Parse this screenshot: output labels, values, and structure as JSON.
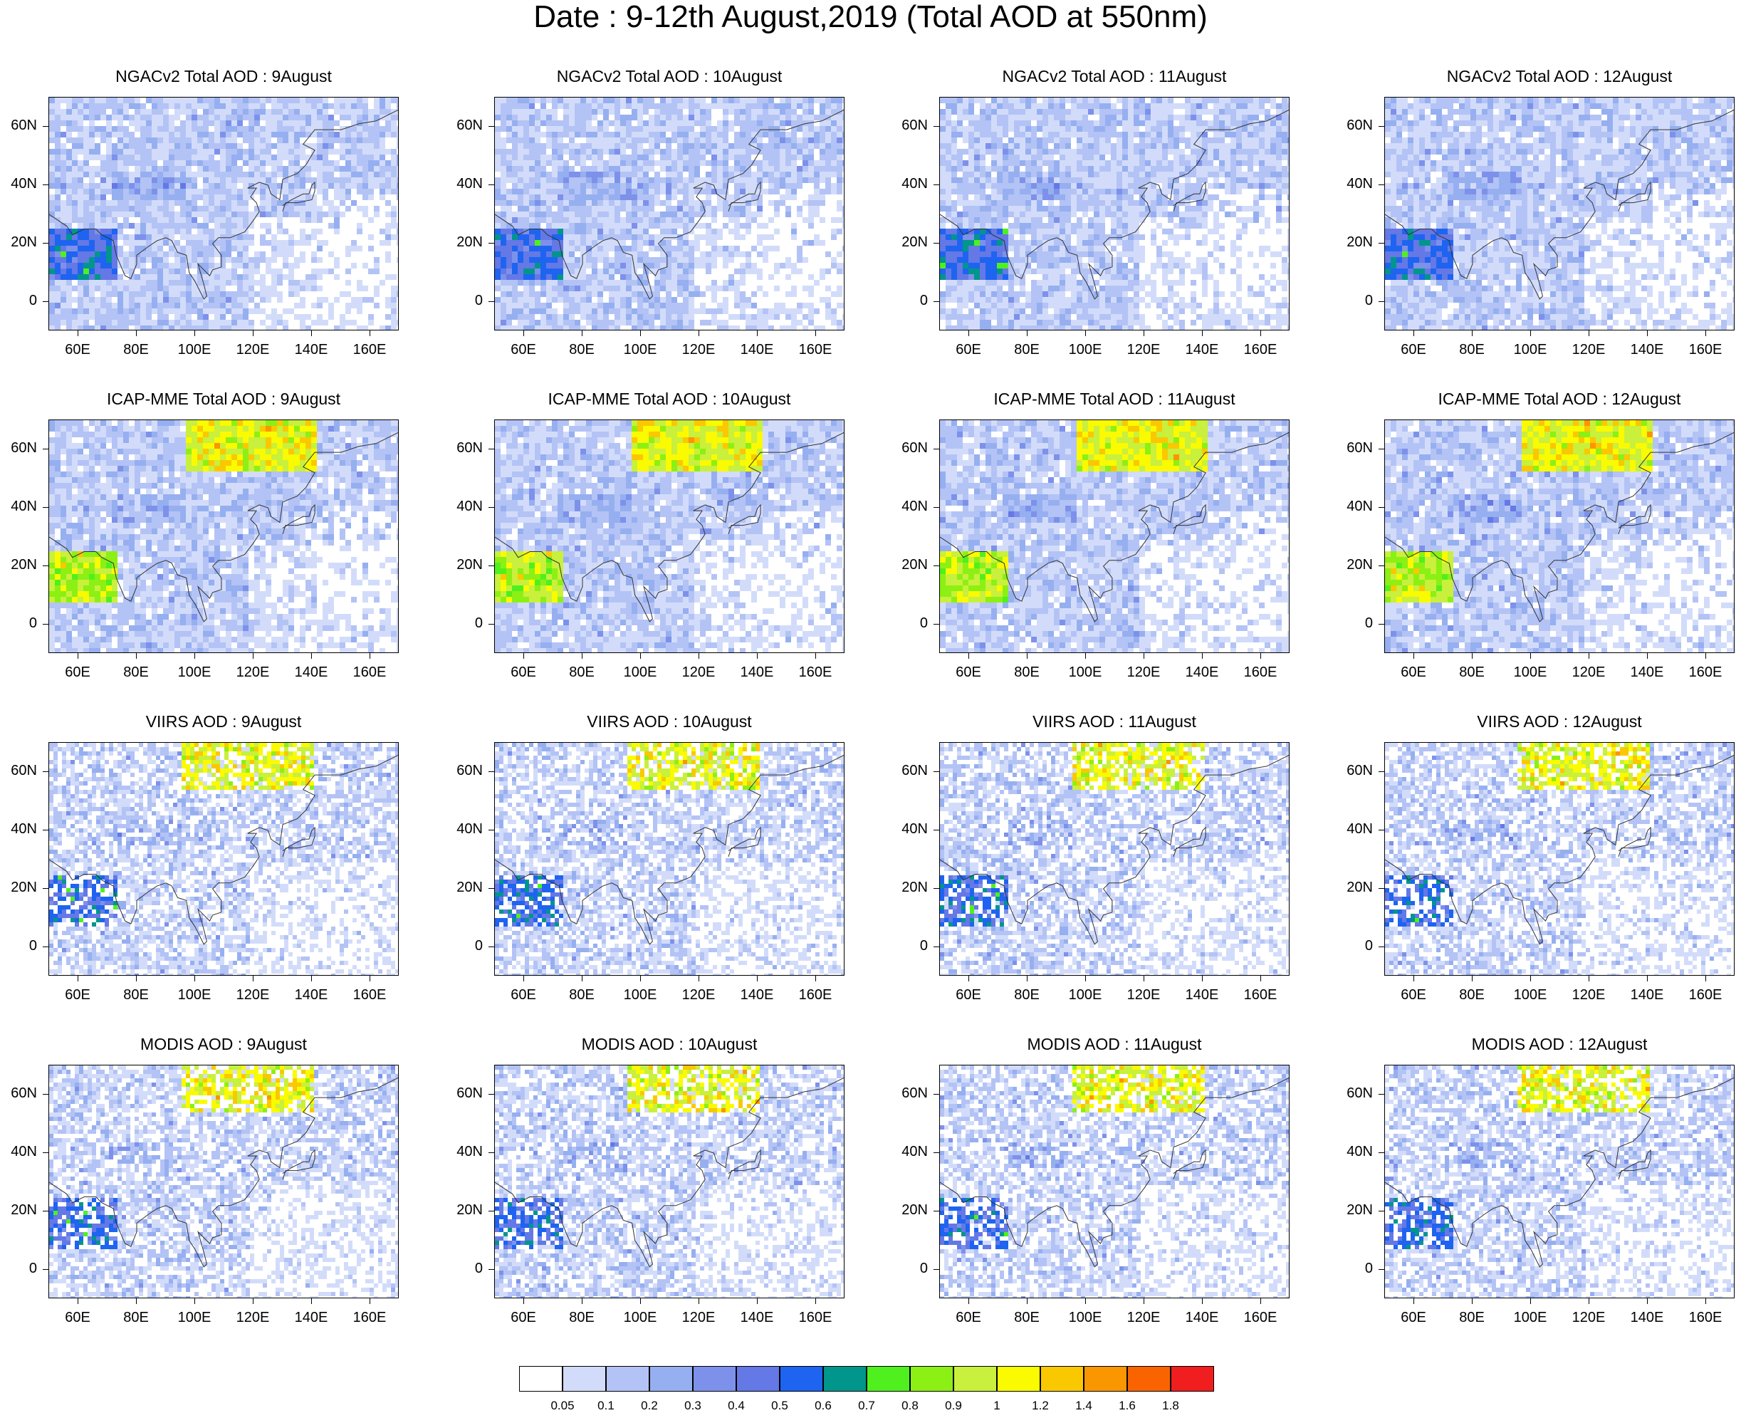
{
  "title": "Date : 9-12th August,2019 (Total AOD at 550nm)",
  "panels": [
    {
      "title": "NGACv2 Total AOD : 9August",
      "row": 0,
      "col": 0,
      "pattern": "ngac"
    },
    {
      "title": "NGACv2 Total AOD : 10August",
      "row": 0,
      "col": 1,
      "pattern": "ngac"
    },
    {
      "title": "NGACv2 Total AOD : 11August",
      "row": 0,
      "col": 2,
      "pattern": "ngac"
    },
    {
      "title": "NGACv2 Total AOD : 12August",
      "row": 0,
      "col": 3,
      "pattern": "ngac"
    },
    {
      "title": "ICAP-MME Total AOD : 9August",
      "row": 1,
      "col": 0,
      "pattern": "icap"
    },
    {
      "title": "ICAP-MME Total AOD : 10August",
      "row": 1,
      "col": 1,
      "pattern": "icap"
    },
    {
      "title": "ICAP-MME Total AOD : 11August",
      "row": 1,
      "col": 2,
      "pattern": "icap"
    },
    {
      "title": "ICAP-MME Total AOD : 12August",
      "row": 1,
      "col": 3,
      "pattern": "icap"
    },
    {
      "title": "VIIRS AOD : 9August",
      "row": 2,
      "col": 0,
      "pattern": "sat"
    },
    {
      "title": "VIIRS AOD : 10August",
      "row": 2,
      "col": 1,
      "pattern": "sat"
    },
    {
      "title": "VIIRS AOD : 11August",
      "row": 2,
      "col": 2,
      "pattern": "sat"
    },
    {
      "title": "VIIRS AOD : 12August",
      "row": 2,
      "col": 3,
      "pattern": "sat"
    },
    {
      "title": "MODIS AOD : 9August",
      "row": 3,
      "col": 0,
      "pattern": "sat"
    },
    {
      "title": "MODIS AOD : 10August",
      "row": 3,
      "col": 1,
      "pattern": "sat"
    },
    {
      "title": "MODIS AOD : 11August",
      "row": 3,
      "col": 2,
      "pattern": "sat"
    },
    {
      "title": "MODIS AOD : 12August",
      "row": 3,
      "col": 3,
      "pattern": "sat"
    }
  ],
  "lat_labels": [
    "60N",
    "40N",
    "20N",
    "0"
  ],
  "lat_values": [
    60,
    40,
    20,
    0
  ],
  "lon_labels": [
    "60E",
    "80E",
    "100E",
    "120E",
    "140E",
    "160E"
  ],
  "lon_values": [
    60,
    80,
    100,
    120,
    140,
    160
  ],
  "map_extent": {
    "lon": [
      50,
      170
    ],
    "lat": [
      -10,
      70
    ]
  },
  "colorbar": {
    "labels": [
      "0.05",
      "0.1",
      "0.2",
      "0.3",
      "0.4",
      "0.5",
      "0.6",
      "0.7",
      "0.8",
      "0.9",
      "1",
      "1.2",
      "1.4",
      "1.6",
      "1.8"
    ],
    "colors": [
      "#ffffff",
      "#d2dcfa",
      "#b4c3f5",
      "#96aff0",
      "#7d91eb",
      "#6478e6",
      "#1e64f0",
      "#00968c",
      "#50f01e",
      "#8cf014",
      "#c8f03c",
      "#fafa00",
      "#fac800",
      "#fa9600",
      "#fa6400",
      "#f01e1e"
    ]
  }
}
